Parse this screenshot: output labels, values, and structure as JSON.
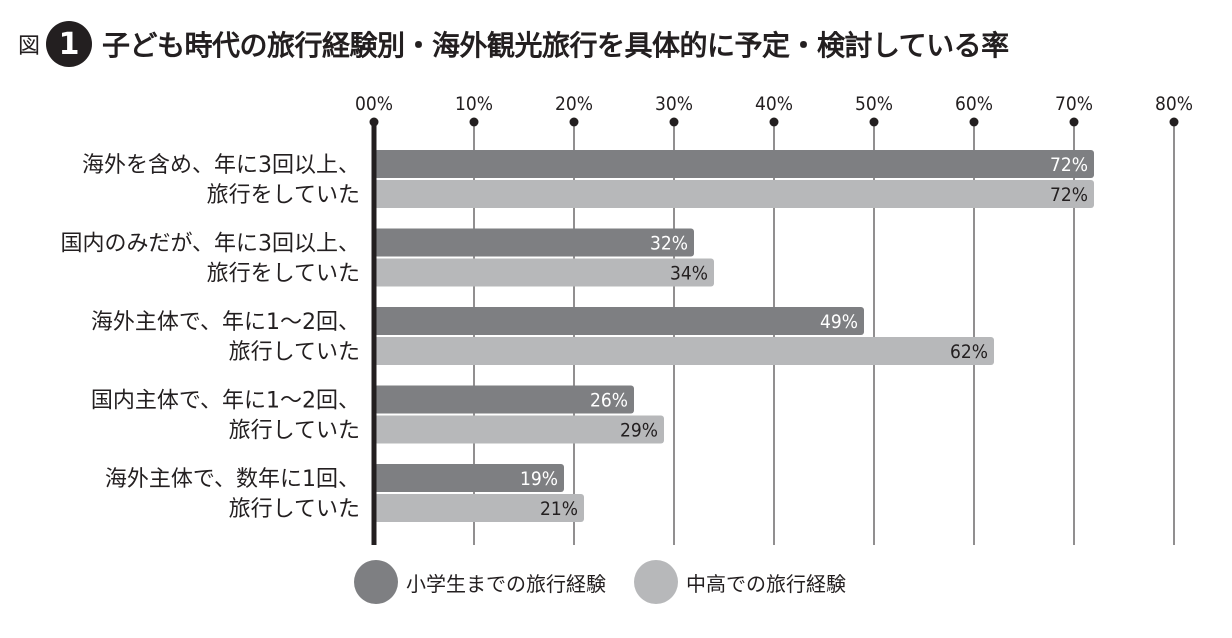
{
  "figure": {
    "prefix": "図",
    "number": "1",
    "title": "子ども時代の旅行経験別・海外観光旅行を具体的に予定・検討している率"
  },
  "colors": {
    "series1": "#7e7f82",
    "series2": "#b7b8ba",
    "axis": "#231f20",
    "grid": "#231f20",
    "label_light": "#ffffff",
    "label_dark": "#231f20"
  },
  "chart_data": {
    "type": "bar",
    "orientation": "horizontal",
    "title": "子ども時代の旅行経験別・海外観光旅行を具体的に予定・検討している率",
    "xlim": [
      0,
      80
    ],
    "ticks": [
      "00%",
      "10%",
      "20%",
      "30%",
      "40%",
      "50%",
      "60%",
      "70%",
      "80%"
    ],
    "tick_values": [
      0,
      10,
      20,
      30,
      40,
      50,
      60,
      70,
      80
    ],
    "grid": true,
    "legend_position": "bottom",
    "categories": [
      [
        "海外を含め、年に3回以上、",
        "旅行をしていた"
      ],
      [
        "国内のみだが、年に3回以上、",
        "旅行をしていた"
      ],
      [
        "海外主体で、年に1～2回、",
        "旅行していた"
      ],
      [
        "国内主体で、年に1～2回、",
        "旅行していた"
      ],
      [
        "海外主体で、数年に1回、",
        "旅行していた"
      ]
    ],
    "series": [
      {
        "name": "小学生までの旅行経験",
        "values": [
          72,
          32,
          49,
          26,
          19
        ],
        "labels": [
          "72%",
          "32%",
          "49%",
          "26%",
          "19%"
        ]
      },
      {
        "name": "中高での旅行経験",
        "values": [
          72,
          34,
          62,
          29,
          21
        ],
        "labels": [
          "72%",
          "34%",
          "62%",
          "29%",
          "21%"
        ]
      }
    ]
  }
}
